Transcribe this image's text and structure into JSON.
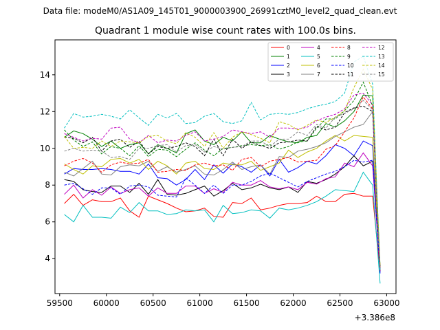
{
  "figure": {
    "suptitle": "Data file: modeM0/AS1A09_145T01_9000003900_26991cztM0_level2_quad_clean.evt"
  },
  "chart_data": {
    "type": "line",
    "title": "Quadrant 1 module wise count rates with 100.0s bins.",
    "xlabel": "",
    "ylabel": "",
    "offset_label": "+3.386e8",
    "xlim": [
      59450,
      63100
    ],
    "ylim": [
      2.1,
      15.9
    ],
    "xticks": [
      59500,
      60000,
      60500,
      61000,
      61500,
      62000,
      62500,
      63000
    ],
    "xtick_labels": [
      "59500",
      "60000",
      "60500",
      "61000",
      "61500",
      "62000",
      "62500",
      "63000"
    ],
    "yticks": [
      4,
      6,
      8,
      10,
      12,
      14
    ],
    "ytick_labels": [
      "4",
      "6",
      "8",
      "10",
      "12",
      "14"
    ],
    "grid": false,
    "legend_position": "top-right",
    "x": [
      59550,
      59650,
      59750,
      59850,
      59950,
      60050,
      60150,
      60250,
      60350,
      60450,
      60550,
      60650,
      60750,
      60850,
      60950,
      61050,
      61150,
      61250,
      61350,
      61450,
      61550,
      61650,
      61750,
      61850,
      61950,
      62050,
      62150,
      62250,
      62350,
      62450,
      62550,
      62650,
      62750,
      62850,
      62930
    ],
    "series": [
      {
        "name": "0",
        "color": "#ff0000",
        "dash": false,
        "values": [
          7.0,
          7.5,
          6.9,
          7.2,
          7.1,
          7.1,
          7.3,
          6.6,
          6.25,
          7.4,
          7.2,
          7.0,
          6.75,
          6.55,
          6.6,
          6.75,
          6.3,
          6.25,
          7.05,
          7.0,
          7.3,
          6.65,
          6.75,
          6.9,
          7.0,
          7.0,
          7.05,
          7.4,
          7.1,
          7.1,
          7.5,
          7.55,
          7.4,
          7.4,
          3.3
        ]
      },
      {
        "name": "1",
        "color": "#008000",
        "dash": false,
        "values": [
          10.6,
          10.95,
          10.8,
          10.5,
          10.1,
          10.4,
          10.0,
          10.2,
          10.3,
          9.7,
          10.2,
          10.0,
          9.75,
          10.8,
          11.0,
          10.4,
          10.2,
          10.6,
          10.4,
          10.9,
          10.3,
          10.3,
          10.7,
          10.5,
          10.35,
          10.3,
          10.6,
          10.7,
          11.35,
          11.15,
          11.5,
          12.0,
          12.9,
          12.85,
          3.4
        ]
      },
      {
        "name": "2",
        "color": "#0000ff",
        "dash": false,
        "values": [
          8.6,
          8.9,
          8.85,
          8.85,
          8.9,
          8.85,
          8.75,
          8.75,
          8.6,
          9.15,
          8.4,
          8.35,
          8.0,
          8.3,
          8.85,
          8.3,
          9.1,
          8.65,
          9.15,
          9.0,
          8.7,
          9.1,
          8.5,
          9.4,
          8.7,
          8.95,
          9.3,
          9.15,
          9.6,
          10.2,
          10.0,
          9.6,
          10.4,
          10.15,
          3.2
        ]
      },
      {
        "name": "3",
        "color": "#000000",
        "dash": false,
        "values": [
          8.3,
          8.2,
          7.75,
          7.65,
          7.6,
          7.95,
          7.95,
          7.6,
          8.1,
          7.5,
          8.3,
          7.5,
          7.45,
          7.55,
          7.75,
          7.95,
          7.4,
          7.7,
          8.1,
          7.75,
          7.85,
          8.05,
          7.85,
          7.75,
          7.9,
          7.6,
          8.2,
          8.1,
          8.3,
          8.6,
          9.0,
          9.6,
          9.05,
          9.3,
          3.3
        ]
      },
      {
        "name": "4",
        "color": "#bf00bf",
        "dash": false,
        "values": [
          7.5,
          8.0,
          7.3,
          7.75,
          7.45,
          7.9,
          7.55,
          7.75,
          7.85,
          7.4,
          7.85,
          7.55,
          7.55,
          7.95,
          7.95,
          7.55,
          7.8,
          7.6,
          8.15,
          8.0,
          8.0,
          8.25,
          7.9,
          7.8,
          7.9,
          7.75,
          8.15,
          8.05,
          8.35,
          8.45,
          9.2,
          9.0,
          9.75,
          9.05,
          3.3
        ]
      },
      {
        "name": "5",
        "color": "#00bfbf",
        "dash": false,
        "values": [
          6.4,
          6.0,
          6.9,
          6.25,
          6.25,
          6.2,
          6.8,
          6.5,
          7.05,
          6.6,
          6.6,
          6.4,
          6.45,
          6.65,
          6.6,
          6.65,
          6.0,
          6.9,
          6.45,
          6.5,
          6.65,
          6.6,
          6.2,
          6.75,
          6.65,
          6.75,
          6.9,
          7.1,
          7.4,
          7.75,
          7.7,
          7.65,
          8.7,
          8.0,
          2.65
        ]
      },
      {
        "name": "6",
        "color": "#bfbf00",
        "dash": false,
        "values": [
          9.15,
          8.85,
          8.6,
          9.05,
          9.0,
          9.4,
          9.45,
          9.2,
          9.4,
          8.85,
          9.3,
          9.05,
          8.6,
          9.2,
          9.3,
          8.9,
          8.85,
          9.2,
          9.1,
          9.1,
          9.3,
          8.8,
          9.0,
          9.2,
          9.9,
          9.5,
          9.8,
          10.0,
          10.4,
          10.7,
          10.4,
          10.7,
          10.65,
          10.6,
          3.4
        ]
      },
      {
        "name": "7",
        "color": "#808080",
        "dash": false,
        "values": [
          8.7,
          8.5,
          8.9,
          9.3,
          8.6,
          8.55,
          9.0,
          9.1,
          9.05,
          9.3,
          8.75,
          9.0,
          8.7,
          8.85,
          9.05,
          8.6,
          8.55,
          8.85,
          9.25,
          8.85,
          9.0,
          9.1,
          8.6,
          9.55,
          9.5,
          9.85,
          9.95,
          10.1,
          10.3,
          10.65,
          10.9,
          11.15,
          11.3,
          12.0,
          3.4
        ]
      },
      {
        "name": "8",
        "color": "#ff0000",
        "dash": true,
        "values": [
          9.05,
          9.3,
          9.45,
          9.2,
          8.7,
          9.1,
          9.25,
          9.15,
          9.2,
          9.4,
          8.7,
          8.75,
          8.85,
          8.8,
          9.1,
          9.2,
          9.05,
          9.1,
          8.8,
          9.4,
          9.5,
          9.0,
          9.3,
          9.4,
          9.5,
          9.25,
          9.3,
          9.35,
          9.95,
          10.15,
          10.9,
          11.65,
          12.8,
          12.15,
          3.5
        ]
      },
      {
        "name": "9",
        "color": "#008000",
        "dash": true,
        "values": [
          11.0,
          10.45,
          10.1,
          10.35,
          9.7,
          10.1,
          10.0,
          9.6,
          10.15,
          9.55,
          9.95,
          9.9,
          9.55,
          9.95,
          10.3,
          9.9,
          9.6,
          10.0,
          10.05,
          10.15,
          10.2,
          10.15,
          10.2,
          9.95,
          10.1,
          10.35,
          10.4,
          11.1,
          11.6,
          11.6,
          12.05,
          12.6,
          13.6,
          12.3,
          3.6
        ]
      },
      {
        "name": "10",
        "color": "#0000ff",
        "dash": true,
        "values": [
          8.0,
          8.1,
          7.8,
          7.5,
          7.85,
          7.85,
          7.5,
          7.95,
          8.0,
          7.9,
          7.45,
          7.4,
          7.35,
          8.4,
          8.0,
          7.55,
          8.0,
          7.55,
          8.0,
          8.0,
          8.2,
          8.5,
          8.65,
          8.4,
          8.15,
          7.9,
          8.2,
          8.4,
          8.6,
          8.75,
          9.0,
          9.35,
          9.25,
          9.35,
          3.3
        ]
      },
      {
        "name": "11",
        "color": "#000000",
        "dash": true,
        "values": [
          10.6,
          10.55,
          10.3,
          10.6,
          9.85,
          10.4,
          10.5,
          10.05,
          10.4,
          9.7,
          10.1,
          10.0,
          10.1,
          10.3,
          10.1,
          9.6,
          10.5,
          9.6,
          10.5,
          10.0,
          10.35,
          10.15,
          10.0,
          10.3,
          10.35,
          10.45,
          10.4,
          11.2,
          11.0,
          11.15,
          11.95,
          12.2,
          12.3,
          12.0,
          3.5
        ]
      },
      {
        "name": "12",
        "color": "#bf00bf",
        "dash": true,
        "values": [
          10.8,
          10.6,
          10.4,
          10.55,
          10.5,
          11.1,
          11.15,
          10.5,
          10.3,
          10.7,
          10.3,
          10.45,
          10.4,
          10.7,
          10.9,
          10.4,
          10.5,
          10.65,
          11.0,
          10.9,
          10.8,
          10.9,
          10.6,
          11.1,
          11.1,
          11.05,
          11.15,
          11.5,
          11.7,
          11.85,
          12.15,
          12.9,
          13.0,
          12.35,
          3.5
        ]
      },
      {
        "name": "13",
        "color": "#00bfbf",
        "dash": true,
        "values": [
          11.1,
          11.9,
          11.7,
          11.75,
          11.85,
          11.75,
          11.6,
          12.1,
          11.65,
          11.25,
          11.85,
          11.65,
          11.9,
          11.35,
          11.4,
          11.75,
          11.9,
          11.45,
          11.35,
          11.5,
          12.5,
          11.55,
          11.85,
          11.9,
          11.85,
          11.95,
          12.15,
          12.3,
          12.4,
          12.55,
          13.0,
          14.7,
          15.0,
          13.5,
          3.3
        ]
      },
      {
        "name": "14",
        "color": "#bfbf00",
        "dash": true,
        "values": [
          10.65,
          10.0,
          10.05,
          10.0,
          10.4,
          10.1,
          10.4,
          10.35,
          10.3,
          10.65,
          10.7,
          10.4,
          10.25,
          10.85,
          10.6,
          10.1,
          10.85,
          10.0,
          10.6,
          10.9,
          10.75,
          10.55,
          10.3,
          11.45,
          11.3,
          11.0,
          11.25,
          11.55,
          11.4,
          11.7,
          12.05,
          13.3,
          14.3,
          13.2,
          3.6
        ]
      },
      {
        "name": "15",
        "color": "#808080",
        "dash": true,
        "values": [
          9.85,
          10.0,
          9.85,
          9.9,
          9.85,
          9.5,
          9.55,
          9.4,
          10.0,
          10.0,
          10.15,
          10.2,
          9.8,
          10.15,
          10.2,
          9.8,
          10.1,
          9.95,
          10.05,
          10.1,
          10.4,
          10.4,
          10.1,
          10.5,
          10.5,
          10.9,
          10.7,
          11.3,
          11.1,
          11.7,
          11.9,
          12.15,
          12.6,
          12.1,
          3.4
        ]
      }
    ]
  }
}
